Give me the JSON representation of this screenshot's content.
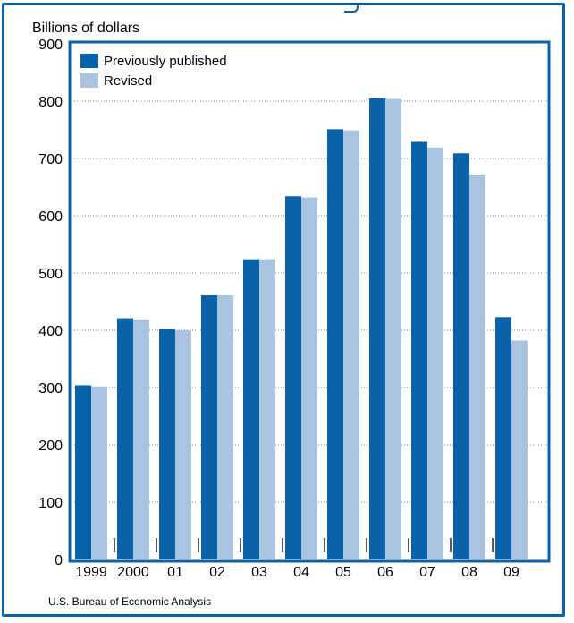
{
  "chart_data": {
    "type": "bar",
    "title": "",
    "xlabel": "",
    "ylabel": "Billions of dollars",
    "ylim": [
      0,
      900
    ],
    "y_ticks": [
      0,
      100,
      200,
      300,
      400,
      500,
      600,
      700,
      800,
      900
    ],
    "grid": true,
    "legend_position": "top-left",
    "categories": [
      "1999",
      "2000",
      "01",
      "02",
      "03",
      "04",
      "05",
      "06",
      "07",
      "08",
      "09"
    ],
    "series": [
      {
        "name": "Previously published",
        "color": "#0a63a8",
        "values": [
          304,
          421,
          402,
          461,
          524,
          634,
          751,
          805,
          729,
          709,
          423
        ]
      },
      {
        "name": "Revised",
        "color": "#a9c3e1",
        "values": [
          302,
          419,
          400,
          461,
          524,
          632,
          749,
          804,
          719,
          672,
          382
        ]
      }
    ],
    "source": "U.S. Bureau of Economic Analysis"
  }
}
